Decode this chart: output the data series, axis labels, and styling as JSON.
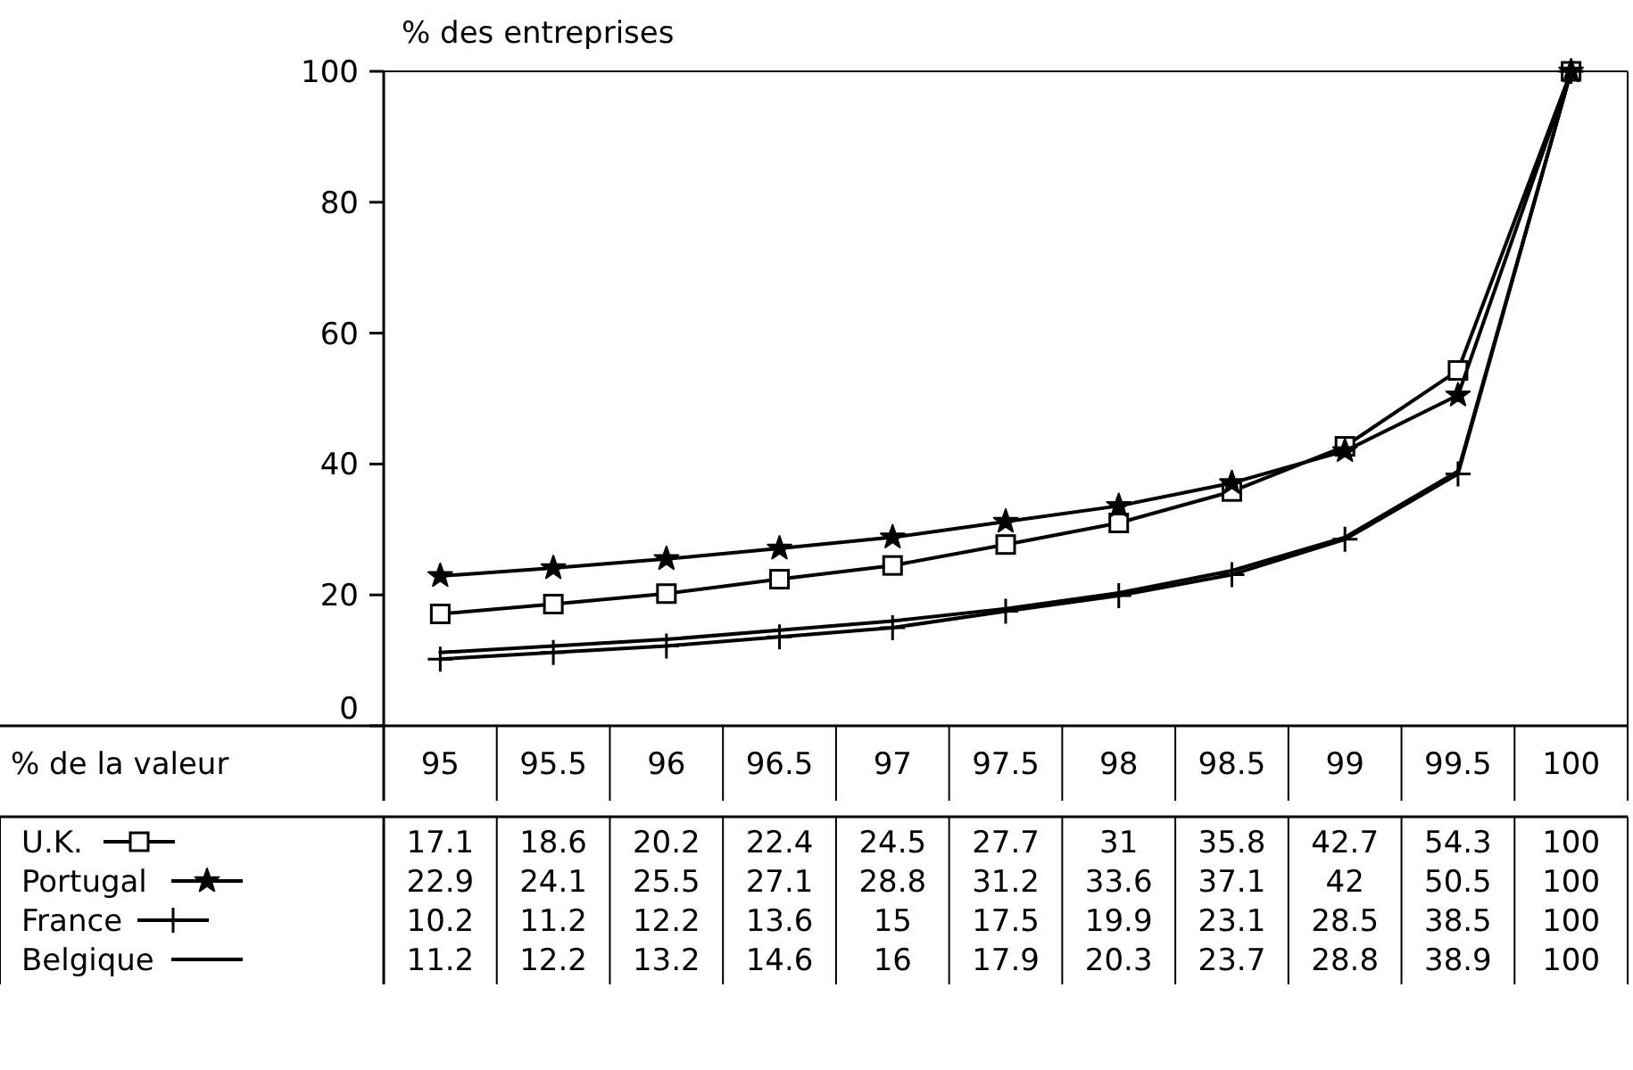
{
  "chart_data": {
    "type": "line",
    "ylabel": "% des entreprises",
    "xlabel": "% de la valeur",
    "categories": [
      "95",
      "95.5",
      "96",
      "96.5",
      "97",
      "97.5",
      "98",
      "98.5",
      "99",
      "99.5",
      "100"
    ],
    "series": [
      {
        "name": "U.K.",
        "color": "#000000",
        "marker": "square",
        "values": [
          17.1,
          18.6,
          20.2,
          22.4,
          24.5,
          27.7,
          31,
          35.8,
          42.7,
          54.3,
          100
        ]
      },
      {
        "name": "Portugal",
        "color": "#000000",
        "marker": "star",
        "values": [
          22.9,
          24.1,
          25.5,
          27.1,
          28.8,
          31.2,
          33.6,
          37.1,
          42,
          50.5,
          100
        ]
      },
      {
        "name": "France",
        "color": "#000000",
        "marker": "cross",
        "values": [
          10.2,
          11.2,
          12.2,
          13.6,
          15,
          17.5,
          19.9,
          23.1,
          28.5,
          38.5,
          100
        ]
      },
      {
        "name": "Belgique",
        "color": "#000000",
        "marker": "none",
        "values": [
          11.2,
          12.2,
          13.2,
          14.6,
          16,
          17.9,
          20.3,
          23.7,
          28.8,
          38.9,
          100
        ]
      }
    ],
    "ylim": [
      0,
      100
    ],
    "yticks": [
      0,
      20,
      40,
      60,
      80,
      100
    ],
    "grid": false,
    "legend": "bottom",
    "data_labels": true,
    "line_style": "solid"
  }
}
